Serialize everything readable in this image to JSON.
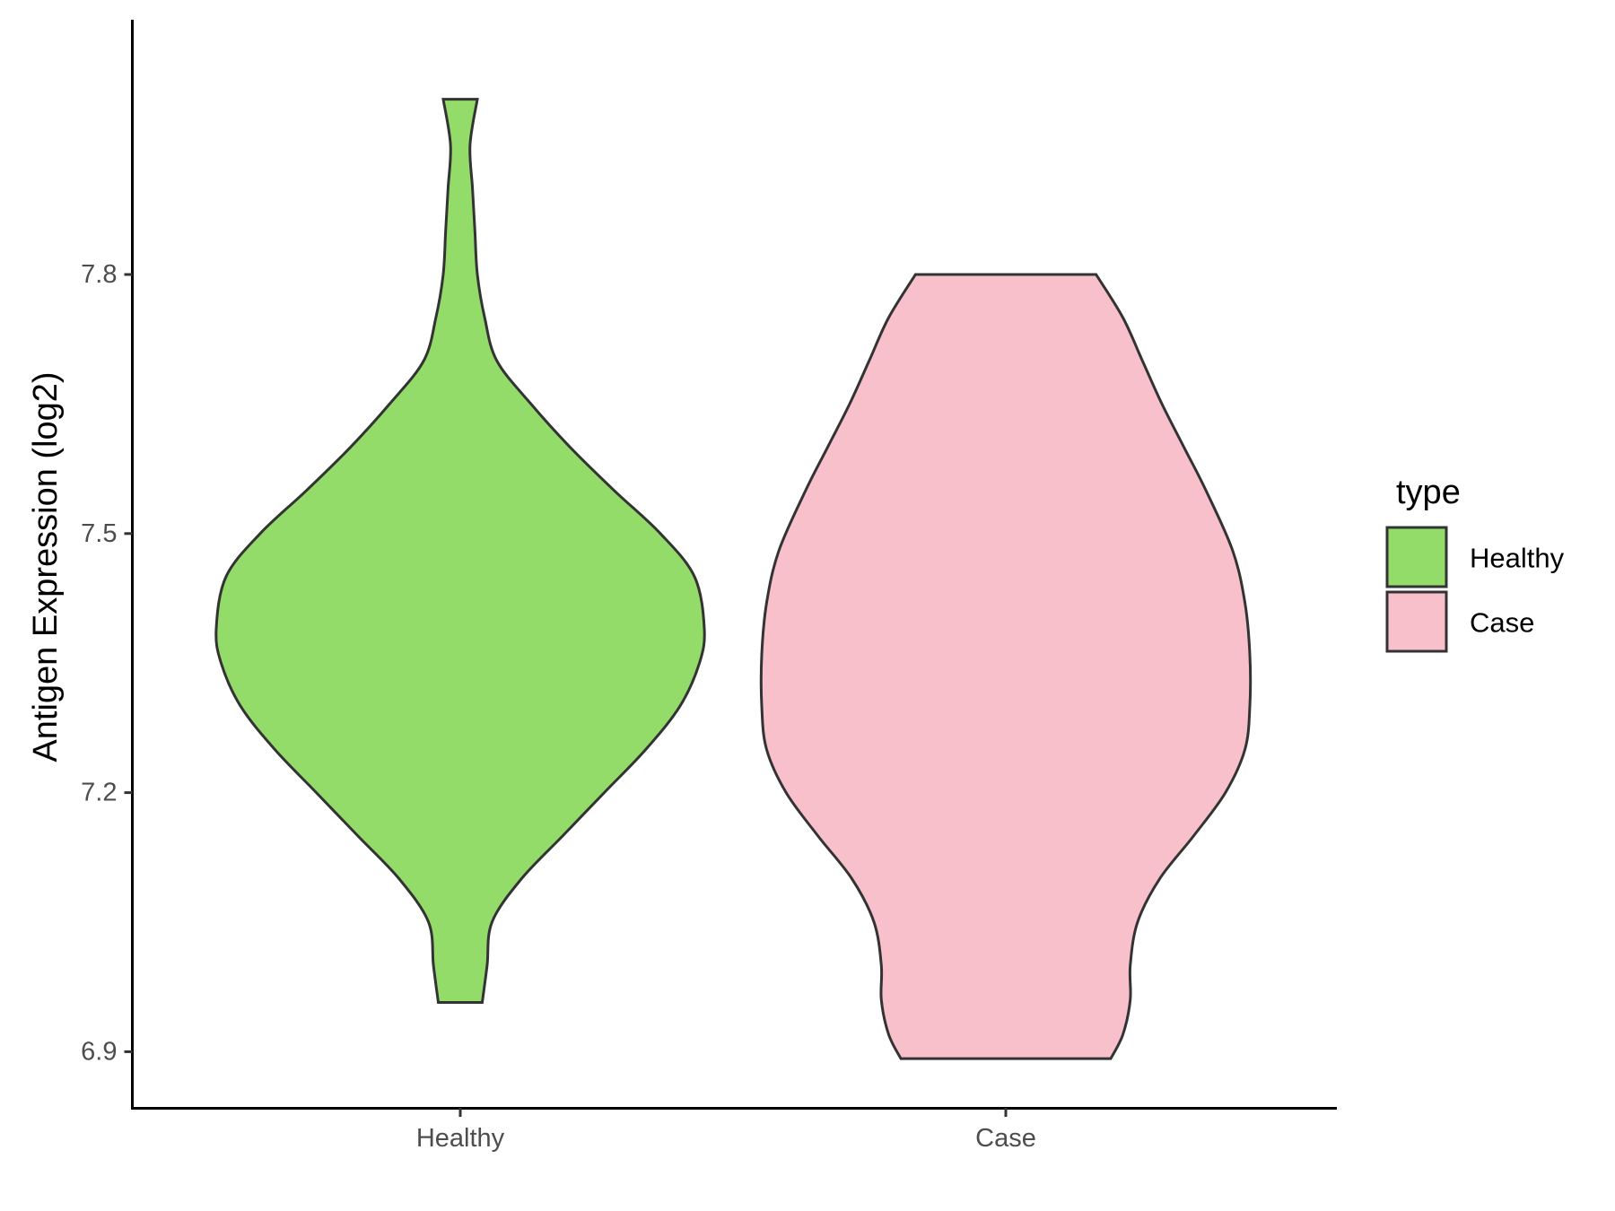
{
  "chart_data": {
    "type": "violin",
    "title": "",
    "xlabel": "",
    "ylabel": "Antigen Expression (log2)",
    "categories": [
      "Healthy",
      "Case"
    ],
    "y_ticks": [
      "6.9",
      "7.2",
      "7.5",
      "7.8"
    ],
    "y_tick_values": [
      6.9,
      7.2,
      7.5,
      7.8
    ],
    "ylim": [
      6.835,
      8.095
    ],
    "grid": false,
    "legend": {
      "title": "type",
      "position": "right",
      "entries": [
        {
          "label": "Healthy",
          "color": "#93DC6A"
        },
        {
          "label": "Case",
          "color": "#F7C0CB"
        }
      ]
    },
    "series": [
      {
        "category": "Healthy",
        "color": "#93DC6A",
        "min": 6.957,
        "max": 8.003,
        "density_profile": [
          [
            6.957,
            0.09
          ],
          [
            7.0,
            0.11
          ],
          [
            7.05,
            0.13
          ],
          [
            7.1,
            0.25
          ],
          [
            7.15,
            0.42
          ],
          [
            7.2,
            0.59
          ],
          [
            7.25,
            0.76
          ],
          [
            7.3,
            0.9
          ],
          [
            7.35,
            0.98
          ],
          [
            7.39,
            1.0
          ],
          [
            7.45,
            0.96
          ],
          [
            7.5,
            0.82
          ],
          [
            7.55,
            0.63
          ],
          [
            7.6,
            0.45
          ],
          [
            7.65,
            0.29
          ],
          [
            7.7,
            0.15
          ],
          [
            7.75,
            0.1
          ],
          [
            7.8,
            0.07
          ],
          [
            7.85,
            0.06
          ],
          [
            7.9,
            0.05
          ],
          [
            7.95,
            0.04
          ],
          [
            8.003,
            0.07
          ]
        ]
      },
      {
        "category": "Case",
        "color": "#F7C0CB",
        "min": 6.892,
        "max": 7.8,
        "density_profile": [
          [
            6.892,
            0.43
          ],
          [
            6.92,
            0.48
          ],
          [
            6.96,
            0.51
          ],
          [
            7.0,
            0.51
          ],
          [
            7.05,
            0.54
          ],
          [
            7.1,
            0.63
          ],
          [
            7.15,
            0.77
          ],
          [
            7.2,
            0.9
          ],
          [
            7.25,
            0.98
          ],
          [
            7.3,
            1.0
          ],
          [
            7.36,
            1.0
          ],
          [
            7.42,
            0.98
          ],
          [
            7.48,
            0.93
          ],
          [
            7.55,
            0.82
          ],
          [
            7.6,
            0.73
          ],
          [
            7.65,
            0.64
          ],
          [
            7.7,
            0.56
          ],
          [
            7.75,
            0.48
          ],
          [
            7.8,
            0.37
          ]
        ]
      }
    ]
  }
}
